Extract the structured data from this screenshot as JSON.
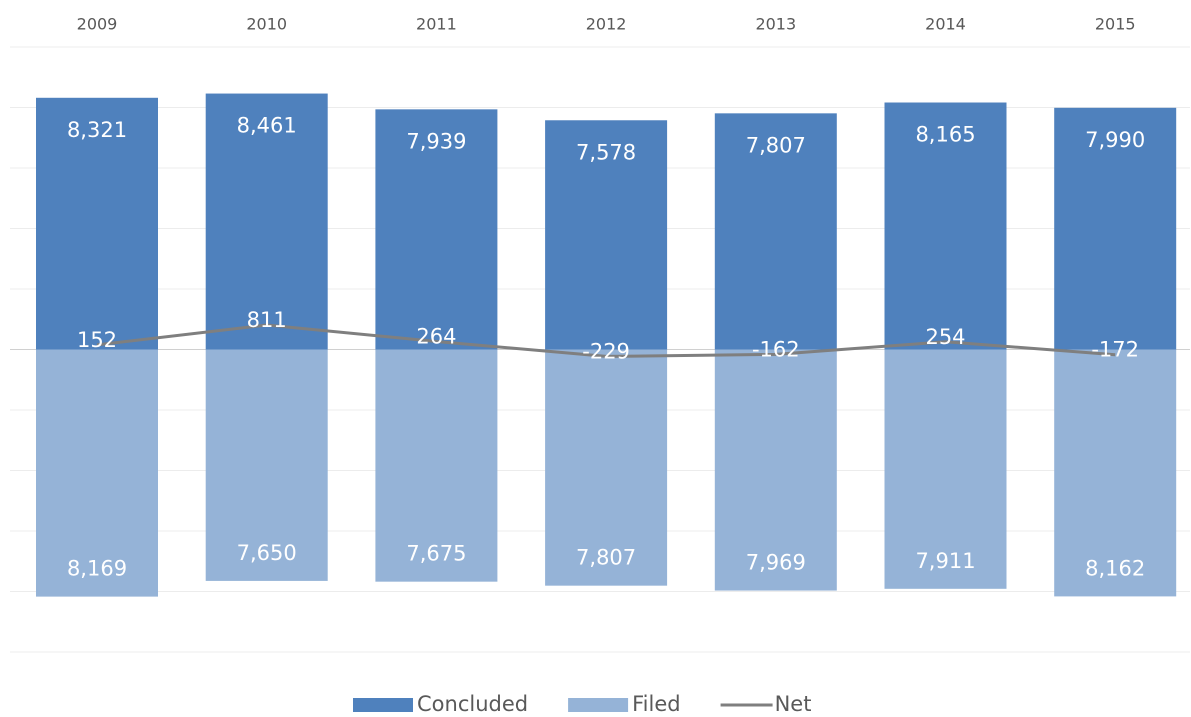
{
  "chart_data": {
    "type": "bar",
    "categories": [
      "2009",
      "2010",
      "2011",
      "2012",
      "2013",
      "2014",
      "2015"
    ],
    "series": [
      {
        "name": "Concluded",
        "color": "#4f81bd",
        "values": [
          8321,
          8461,
          7939,
          7578,
          7807,
          8165,
          7990
        ],
        "value_labels": [
          "8,321",
          "8,461",
          "7,939",
          "7,578",
          "7,807",
          "8,165",
          "7,990"
        ]
      },
      {
        "name": "Filed",
        "color": "#95b3d7",
        "values": [
          -8169,
          -7650,
          -7675,
          -7807,
          -7969,
          -7911,
          -8162
        ],
        "value_labels": [
          "8,169",
          "7,650",
          "7,675",
          "7,807",
          "7,969",
          "7,911",
          "8,162"
        ]
      },
      {
        "name": "Net",
        "type": "line",
        "color": "#7f7f7f",
        "values": [
          152,
          811,
          264,
          -229,
          -162,
          254,
          -172
        ]
      }
    ],
    "ylim": [
      -10000,
      10000
    ],
    "yticks": [
      -10000,
      -8000,
      -6000,
      -4000,
      -2000,
      0,
      2000,
      4000,
      6000,
      8000,
      10000
    ],
    "grid": true,
    "legend": "bottom"
  }
}
